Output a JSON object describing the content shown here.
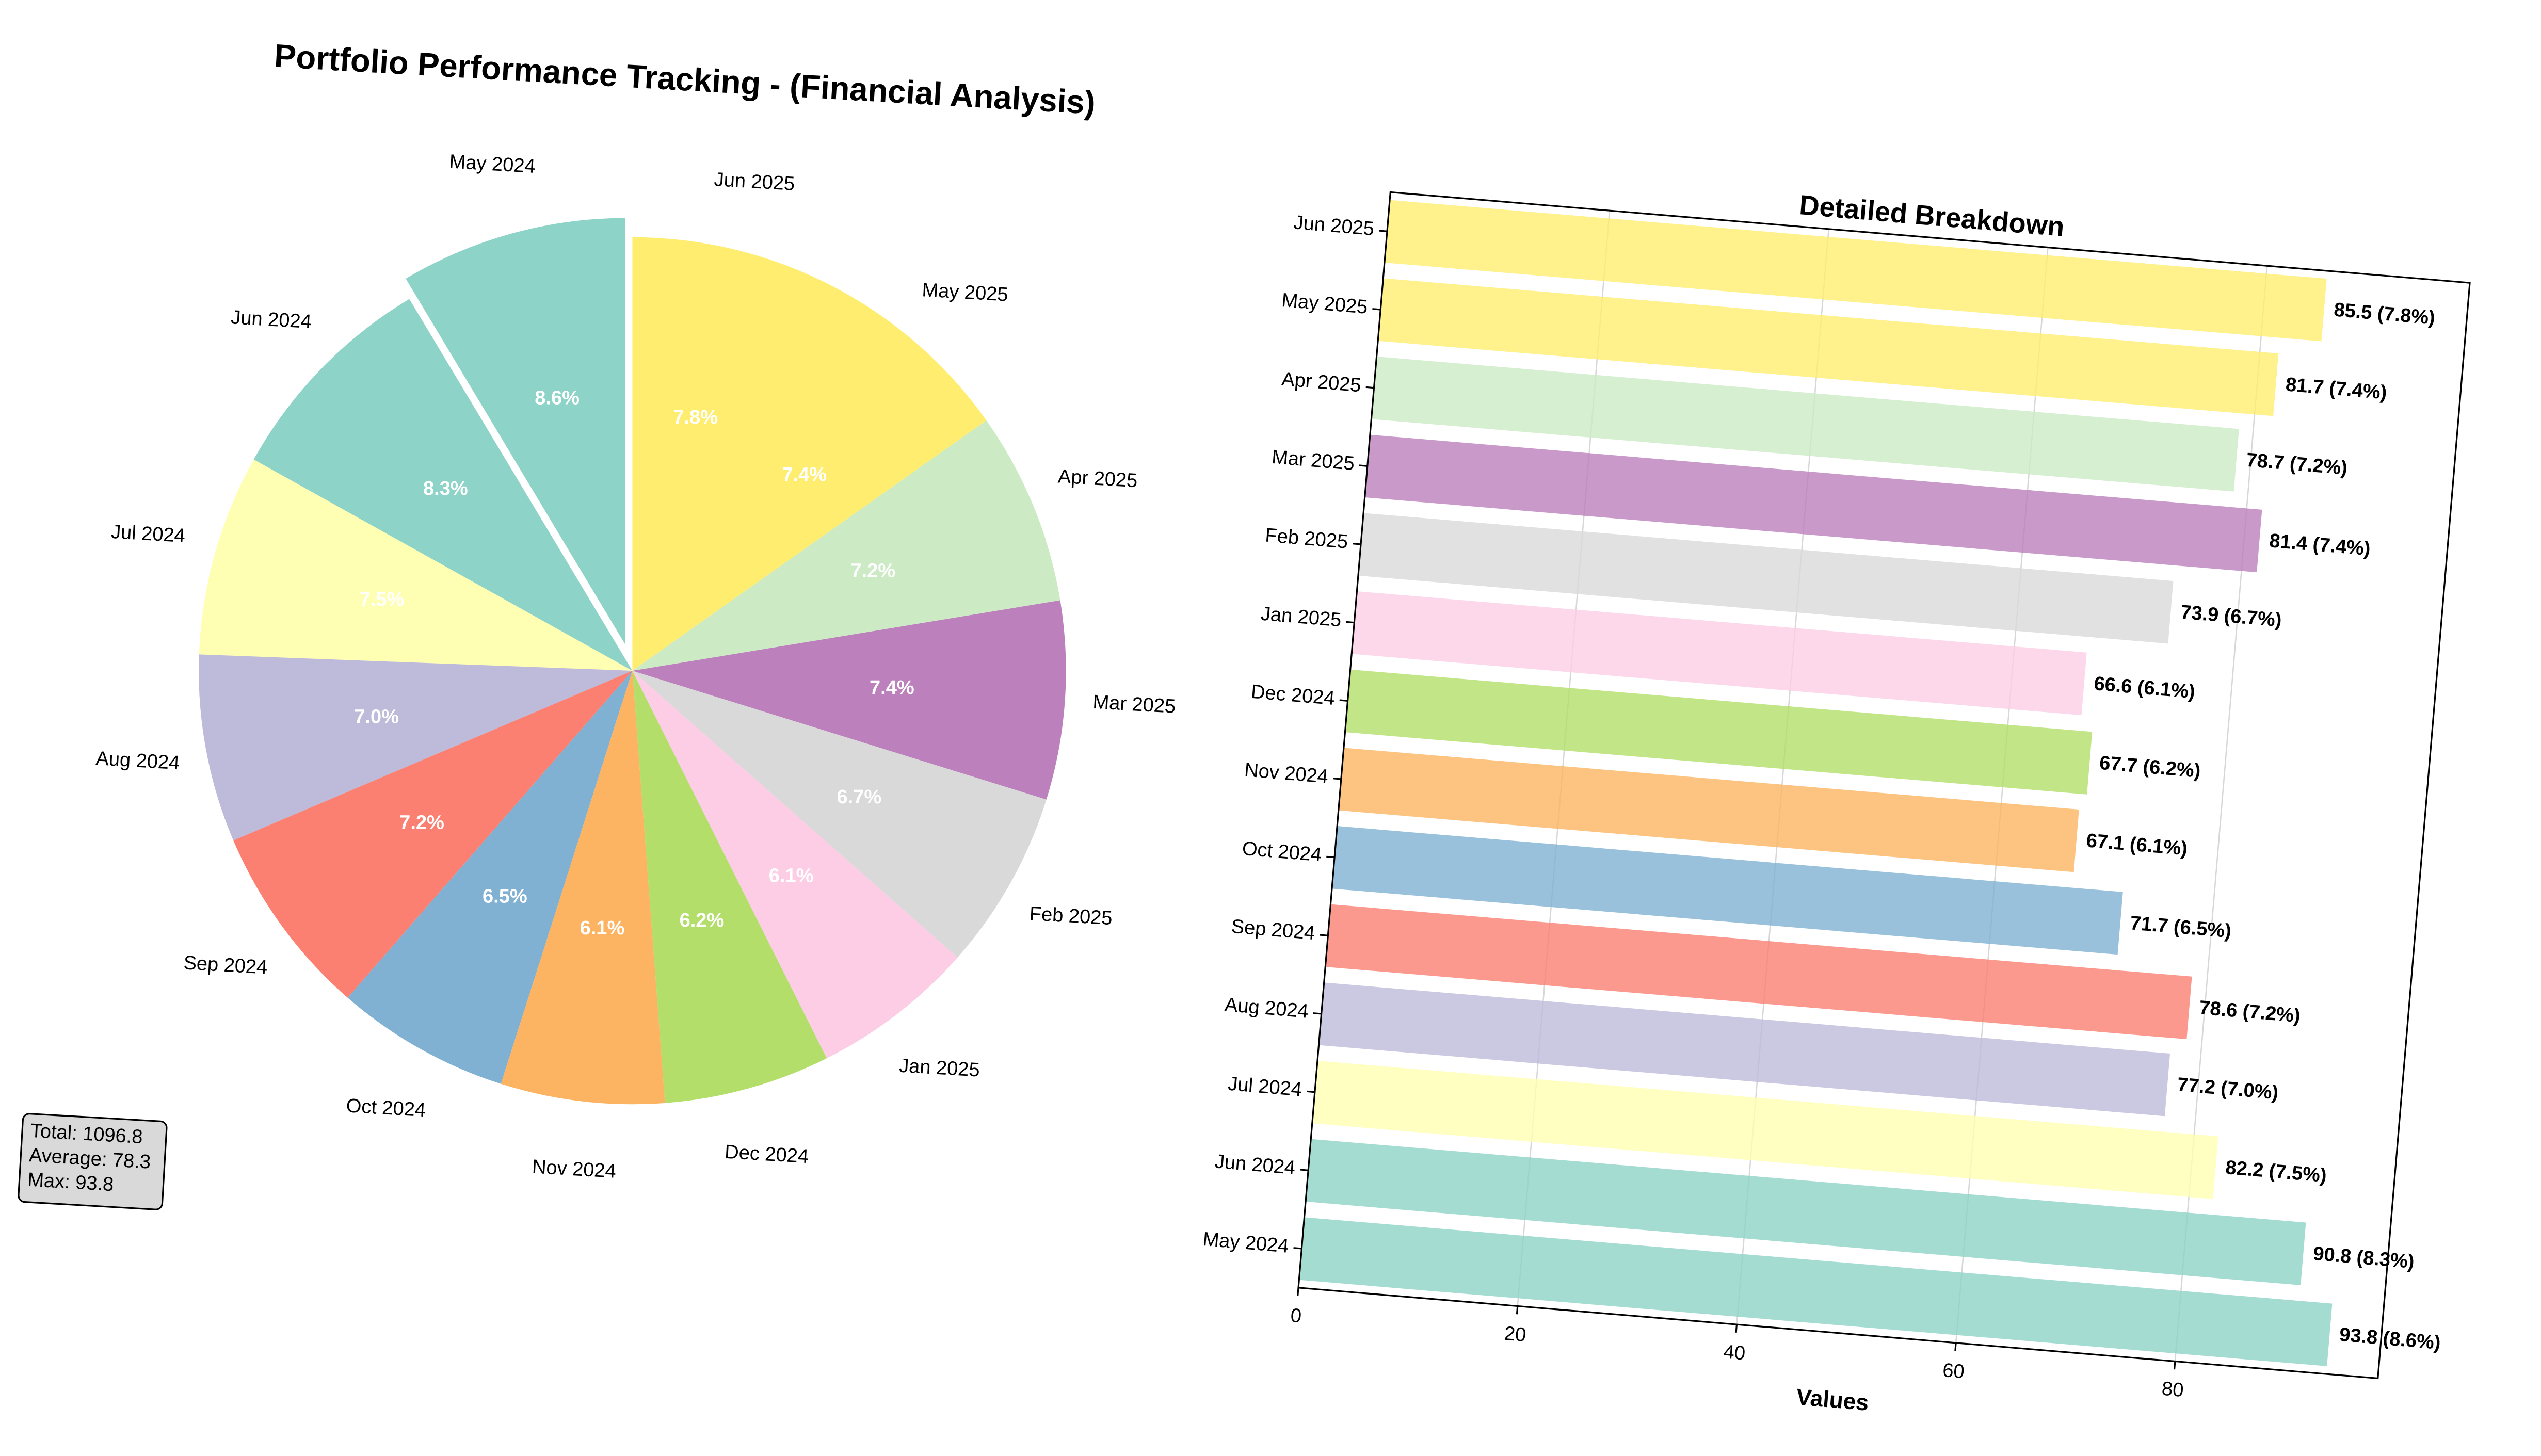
{
  "chart_data": [
    {
      "type": "pie",
      "title": "Portfolio Performance Tracking - (Financial Analysis)",
      "categories": [
        "May 2024",
        "Jun 2024",
        "Jul 2024",
        "Aug 2024",
        "Sep 2024",
        "Oct 2024",
        "Nov 2024",
        "Dec 2024",
        "Jan 2025",
        "Feb 2025",
        "Mar 2025",
        "Apr 2025",
        "May 2025",
        "Jun 2025"
      ],
      "values": [
        8.6,
        8.3,
        7.5,
        7.0,
        7.2,
        6.5,
        6.1,
        6.2,
        6.1,
        6.7,
        7.4,
        7.2,
        7.4,
        7.8
      ],
      "value_labels": [
        "8.6%",
        "8.3%",
        "7.5%",
        "7.0%",
        "7.2%",
        "6.5%",
        "6.1%",
        "6.2%",
        "6.1%",
        "6.7%",
        "7.4%",
        "7.2%",
        "7.4%",
        "7.8%"
      ],
      "colors": [
        "#8dd3c7",
        "#8dd3c7",
        "#ffffb3",
        "#bebada",
        "#fb8072",
        "#80b1d3",
        "#fdb462",
        "#b3de69",
        "#fccde5",
        "#d9d9d9",
        "#bc80bd",
        "#ccebc5",
        "#ffed6f",
        "#ffed6f"
      ],
      "exploded_category": "May 2024",
      "annotations": [
        "Total: 1096.8",
        "Average: 78.3",
        "Max: 93.8"
      ]
    },
    {
      "type": "barh",
      "title": "Detailed Breakdown",
      "xlabel": "Values",
      "categories": [
        "May 2024",
        "Jun 2024",
        "Jul 2024",
        "Aug 2024",
        "Sep 2024",
        "Oct 2024",
        "Nov 2024",
        "Dec 2024",
        "Jan 2025",
        "Feb 2025",
        "Mar 2025",
        "Apr 2025",
        "May 2025",
        "Jun 2025"
      ],
      "values": [
        93.8,
        90.8,
        82.2,
        77.2,
        78.6,
        71.7,
        67.1,
        67.7,
        66.6,
        73.9,
        81.4,
        78.7,
        81.7,
        85.5
      ],
      "value_labels": [
        "93.8 (8.6%)",
        "90.8 (8.3%)",
        "82.2 (7.5%)",
        "77.2 (7.0%)",
        "78.6 (7.2%)",
        "71.7 (6.5%)",
        "67.1 (6.1%)",
        "67.7 (6.2%)",
        "66.6 (6.1%)",
        "73.9 (6.7%)",
        "81.4 (7.4%)",
        "78.7 (7.2%)",
        "81.7 (7.4%)",
        "85.5 (7.8%)"
      ],
      "colors": [
        "#8dd3c7",
        "#8dd3c7",
        "#ffffb3",
        "#bebada",
        "#fb8072",
        "#80b1d3",
        "#fdb462",
        "#b3de69",
        "#fccde5",
        "#d9d9d9",
        "#bc80bd",
        "#ccebc5",
        "#ffed6f",
        "#ffed6f"
      ],
      "xlim": [
        0,
        98.5
      ],
      "xticks": [
        0,
        20,
        40,
        60,
        80
      ],
      "grid": true
    }
  ]
}
